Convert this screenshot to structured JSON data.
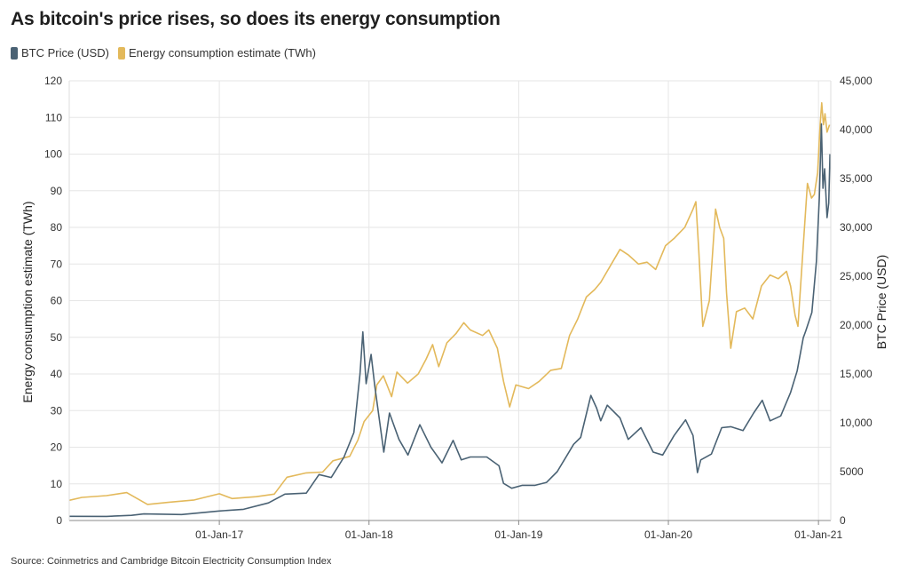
{
  "title": "As bitcoin's price rises, so does its energy consumption",
  "source": "Source: Coinmetrics and Cambridge Bitcoin Electricity Consumption Index",
  "colors": {
    "btc": "#4a6274",
    "energy": "#e3b95b",
    "grid": "#e6e6e6"
  },
  "chart_data": {
    "type": "line",
    "title": "As bitcoin's price rises, so does its energy consumption",
    "legend_position": "top-left",
    "grid": true,
    "x_range": [
      "2016-01-01",
      "2021-01-31"
    ],
    "x_ticks": [
      "2017-01-01",
      "2018-01-01",
      "2019-01-01",
      "2020-01-01",
      "2021-01-01"
    ],
    "x_tick_labels": [
      "01-Jan-17",
      "01-Jan-18",
      "01-Jan-19",
      "01-Jan-20",
      "01-Jan-21"
    ],
    "y_left": {
      "label": "Energy consumption estimate (TWh)",
      "range": [
        0,
        120
      ],
      "ticks": [
        0,
        10,
        20,
        30,
        40,
        50,
        60,
        70,
        80,
        90,
        100,
        110,
        120
      ],
      "tick_labels": [
        "0",
        "10",
        "20",
        "30",
        "40",
        "50",
        "60",
        "70",
        "80",
        "90",
        "100",
        "110",
        "120"
      ]
    },
    "y_right": {
      "label": "BTC Price (USD)",
      "range": [
        0,
        45000
      ],
      "ticks": [
        0,
        5000,
        10000,
        15000,
        20000,
        25000,
        30000,
        35000,
        40000,
        45000
      ],
      "tick_labels": [
        "0",
        "5000",
        "10,000",
        "15,000",
        "20,000",
        "25,000",
        "30,000",
        "35,000",
        "40,000",
        "45,000"
      ]
    },
    "series": [
      {
        "name": "BTC Price (USD)",
        "axis": "right",
        "points": [
          [
            "2016-01-01",
            430
          ],
          [
            "2016-04-01",
            420
          ],
          [
            "2016-06-01",
            530
          ],
          [
            "2016-07-01",
            670
          ],
          [
            "2016-10-01",
            610
          ],
          [
            "2017-01-01",
            970
          ],
          [
            "2017-03-01",
            1150
          ],
          [
            "2017-05-01",
            1800
          ],
          [
            "2017-06-10",
            2700
          ],
          [
            "2017-08-01",
            2800
          ],
          [
            "2017-09-01",
            4700
          ],
          [
            "2017-10-01",
            4400
          ],
          [
            "2017-11-01",
            6500
          ],
          [
            "2017-11-25",
            9000
          ],
          [
            "2017-12-10",
            15000
          ],
          [
            "2017-12-17",
            19300
          ],
          [
            "2017-12-25",
            14000
          ],
          [
            "2018-01-06",
            17000
          ],
          [
            "2018-01-15",
            13800
          ],
          [
            "2018-02-06",
            7000
          ],
          [
            "2018-02-20",
            11000
          ],
          [
            "2018-03-15",
            8300
          ],
          [
            "2018-04-06",
            6700
          ],
          [
            "2018-05-05",
            9800
          ],
          [
            "2018-06-01",
            7500
          ],
          [
            "2018-06-28",
            5900
          ],
          [
            "2018-07-25",
            8200
          ],
          [
            "2018-08-14",
            6200
          ],
          [
            "2018-09-05",
            6500
          ],
          [
            "2018-10-15",
            6500
          ],
          [
            "2018-11-14",
            5600
          ],
          [
            "2018-11-25",
            3800
          ],
          [
            "2018-12-15",
            3300
          ],
          [
            "2019-01-10",
            3600
          ],
          [
            "2019-02-10",
            3600
          ],
          [
            "2019-03-10",
            3900
          ],
          [
            "2019-04-05",
            5000
          ],
          [
            "2019-05-15",
            7800
          ],
          [
            "2019-06-01",
            8500
          ],
          [
            "2019-06-26",
            12800
          ],
          [
            "2019-07-10",
            11500
          ],
          [
            "2019-07-20",
            10200
          ],
          [
            "2019-08-05",
            11800
          ],
          [
            "2019-09-05",
            10500
          ],
          [
            "2019-09-25",
            8300
          ],
          [
            "2019-10-26",
            9500
          ],
          [
            "2019-11-25",
            7000
          ],
          [
            "2019-12-18",
            6700
          ],
          [
            "2020-01-15",
            8700
          ],
          [
            "2020-02-12",
            10300
          ],
          [
            "2020-03-01",
            8700
          ],
          [
            "2020-03-12",
            4900
          ],
          [
            "2020-03-20",
            6200
          ],
          [
            "2020-04-15",
            6800
          ],
          [
            "2020-05-10",
            9500
          ],
          [
            "2020-06-01",
            9600
          ],
          [
            "2020-07-01",
            9200
          ],
          [
            "2020-07-27",
            11000
          ],
          [
            "2020-08-17",
            12300
          ],
          [
            "2020-09-05",
            10200
          ],
          [
            "2020-10-01",
            10700
          ],
          [
            "2020-10-25",
            13100
          ],
          [
            "2020-11-10",
            15300
          ],
          [
            "2020-11-25",
            18700
          ],
          [
            "2020-12-01",
            19400
          ],
          [
            "2020-12-16",
            21300
          ],
          [
            "2020-12-27",
            26500
          ],
          [
            "2021-01-03",
            33000
          ],
          [
            "2021-01-08",
            40600
          ],
          [
            "2021-01-12",
            34000
          ],
          [
            "2021-01-16",
            36000
          ],
          [
            "2021-01-22",
            31000
          ],
          [
            "2021-01-26",
            32500
          ],
          [
            "2021-01-29",
            37500
          ]
        ]
      },
      {
        "name": "Energy consumption estimate (TWh)",
        "axis": "left",
        "points": [
          [
            "2016-01-01",
            5.5
          ],
          [
            "2016-02-01",
            6.3
          ],
          [
            "2016-04-01",
            6.8
          ],
          [
            "2016-05-20",
            7.6
          ],
          [
            "2016-07-10",
            4.4
          ],
          [
            "2016-09-01",
            5.0
          ],
          [
            "2016-11-01",
            5.6
          ],
          [
            "2017-01-01",
            7.3
          ],
          [
            "2017-02-01",
            6.0
          ],
          [
            "2017-04-01",
            6.5
          ],
          [
            "2017-05-15",
            7.2
          ],
          [
            "2017-06-15",
            11.8
          ],
          [
            "2017-08-01",
            13.0
          ],
          [
            "2017-09-10",
            13.2
          ],
          [
            "2017-10-05",
            16.3
          ],
          [
            "2017-11-15",
            17.5
          ],
          [
            "2017-12-05",
            22.0
          ],
          [
            "2017-12-20",
            27.0
          ],
          [
            "2018-01-10",
            30.0
          ],
          [
            "2018-01-20",
            37.0
          ],
          [
            "2018-02-05",
            39.5
          ],
          [
            "2018-02-25",
            33.8
          ],
          [
            "2018-03-10",
            40.5
          ],
          [
            "2018-04-05",
            37.5
          ],
          [
            "2018-05-01",
            40.0
          ],
          [
            "2018-05-20",
            44.0
          ],
          [
            "2018-06-05",
            48.0
          ],
          [
            "2018-06-20",
            42.0
          ],
          [
            "2018-07-10",
            48.5
          ],
          [
            "2018-08-01",
            51.0
          ],
          [
            "2018-08-20",
            54.0
          ],
          [
            "2018-09-05",
            52.0
          ],
          [
            "2018-10-05",
            50.5
          ],
          [
            "2018-10-20",
            52.0
          ],
          [
            "2018-11-10",
            47.0
          ],
          [
            "2018-11-25",
            38.0
          ],
          [
            "2018-12-10",
            31.0
          ],
          [
            "2018-12-25",
            37.0
          ],
          [
            "2019-01-25",
            36.0
          ],
          [
            "2019-02-20",
            38.0
          ],
          [
            "2019-03-20",
            41.0
          ],
          [
            "2019-04-15",
            41.5
          ],
          [
            "2019-05-05",
            50.5
          ],
          [
            "2019-05-25",
            55.0
          ],
          [
            "2019-06-15",
            61.0
          ],
          [
            "2019-07-05",
            63.0
          ],
          [
            "2019-07-20",
            65.0
          ],
          [
            "2019-08-15",
            70.0
          ],
          [
            "2019-09-05",
            74.0
          ],
          [
            "2019-09-25",
            72.5
          ],
          [
            "2019-10-20",
            70.0
          ],
          [
            "2019-11-10",
            70.5
          ],
          [
            "2019-12-01",
            68.5
          ],
          [
            "2019-12-25",
            75.0
          ],
          [
            "2020-01-15",
            77.0
          ],
          [
            "2020-02-10",
            80.0
          ],
          [
            "2020-03-01",
            85.0
          ],
          [
            "2020-03-08",
            87.0
          ],
          [
            "2020-03-15",
            74.0
          ],
          [
            "2020-03-25",
            53.0
          ],
          [
            "2020-04-10",
            60.0
          ],
          [
            "2020-04-25",
            85.0
          ],
          [
            "2020-05-05",
            80.0
          ],
          [
            "2020-05-15",
            77.0
          ],
          [
            "2020-05-22",
            62.0
          ],
          [
            "2020-06-01",
            47.0
          ],
          [
            "2020-06-15",
            57.0
          ],
          [
            "2020-07-05",
            58.0
          ],
          [
            "2020-07-25",
            55.0
          ],
          [
            "2020-08-15",
            64.0
          ],
          [
            "2020-09-05",
            67.0
          ],
          [
            "2020-09-25",
            66.0
          ],
          [
            "2020-10-15",
            68.0
          ],
          [
            "2020-10-25",
            64.0
          ],
          [
            "2020-11-05",
            56.0
          ],
          [
            "2020-11-12",
            53.0
          ],
          [
            "2020-11-25",
            75.0
          ],
          [
            "2020-12-05",
            92.0
          ],
          [
            "2020-12-15",
            88.0
          ],
          [
            "2020-12-22",
            89.0
          ],
          [
            "2020-12-30",
            95.0
          ],
          [
            "2021-01-05",
            108.0
          ],
          [
            "2021-01-09",
            114.0
          ],
          [
            "2021-01-13",
            108.0
          ],
          [
            "2021-01-17",
            111.0
          ],
          [
            "2021-01-22",
            106.0
          ],
          [
            "2021-01-28",
            108.0
          ]
        ]
      }
    ]
  }
}
